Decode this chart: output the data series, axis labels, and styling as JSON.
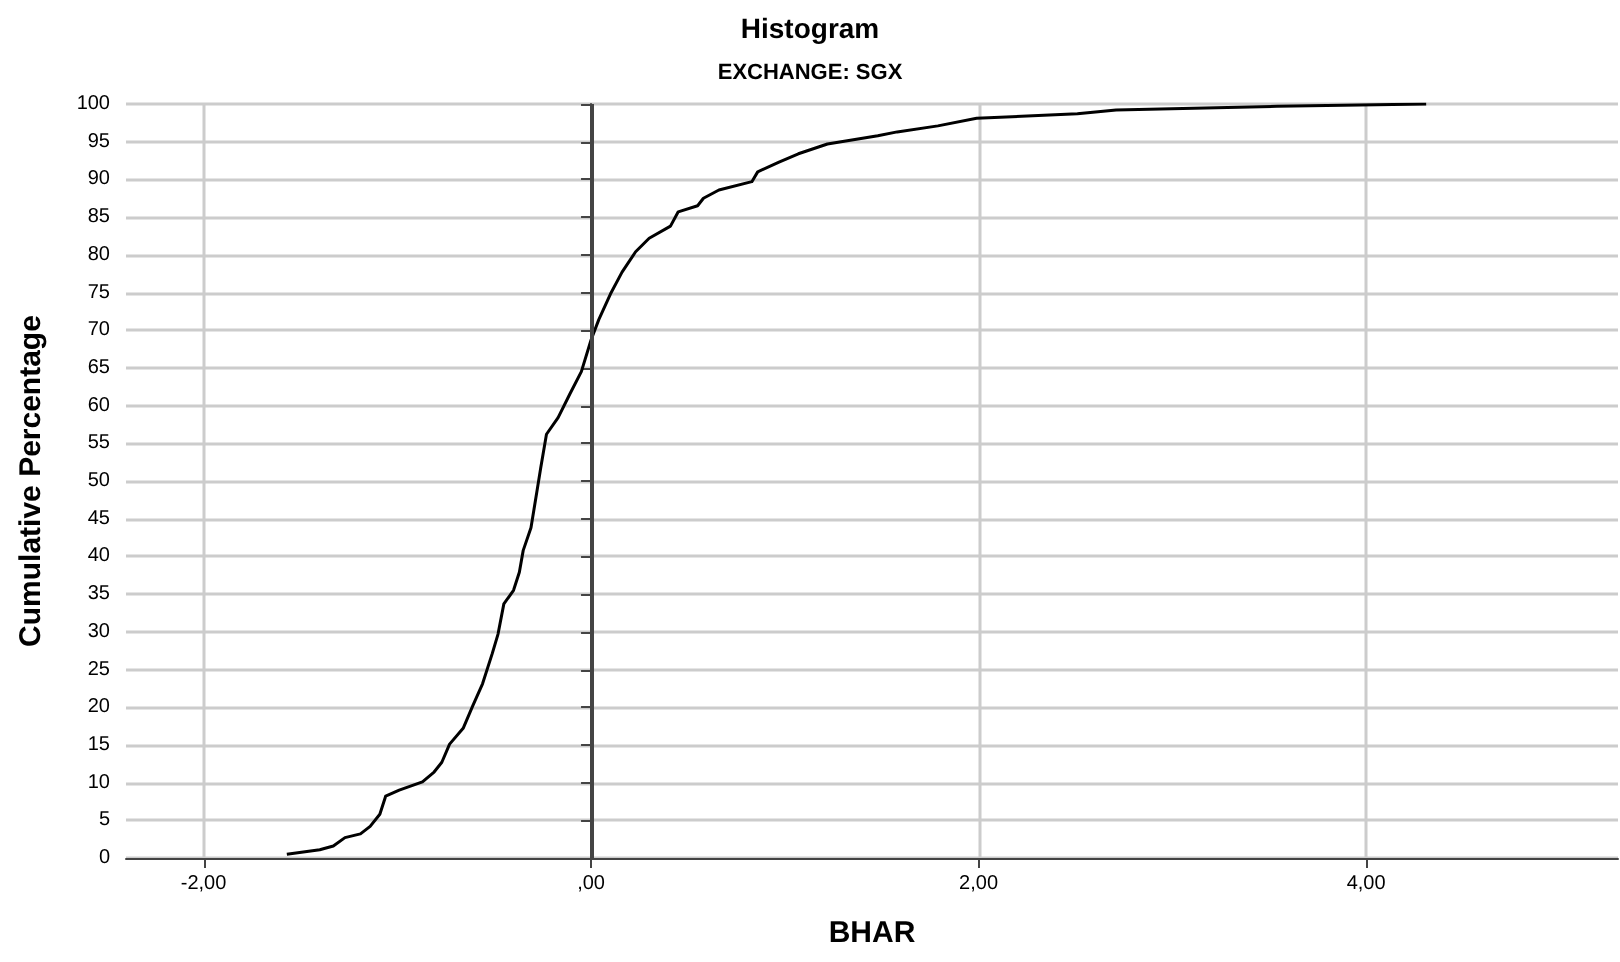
{
  "chart_data": {
    "type": "line",
    "title": "Histogram",
    "subtitle": "EXCHANGE: SGX",
    "xlabel": "BHAR",
    "ylabel": "Cumulative Percentage",
    "x": [
      -1.57,
      -1.4,
      -1.33,
      -1.27,
      -1.19,
      -1.14,
      -1.09,
      -1.06,
      -0.99,
      -0.87,
      -0.81,
      -0.77,
      -0.73,
      -0.66,
      -0.61,
      -0.56,
      -0.51,
      -0.48,
      -0.45,
      -0.4,
      -0.37,
      -0.35,
      -0.31,
      -0.28,
      -0.26,
      -0.23,
      -0.17,
      -0.11,
      -0.05,
      0,
      0.04,
      0.1,
      0.16,
      0.23,
      0.3,
      0.41,
      0.45,
      0.55,
      0.58,
      0.66,
      0.83,
      0.86,
      0.97,
      1.07,
      1.22,
      1.48,
      1.58,
      1.79,
      1.99,
      2.51,
      2.71,
      3.54,
      4.31
    ],
    "series": [
      {
        "color": "#000000",
        "values": [
          0.5,
          1.1,
          1.6,
          2.7,
          3.2,
          4.2,
          5.8,
          8.2,
          9,
          10.1,
          11.4,
          12.7,
          15.1,
          17.2,
          20.2,
          23.1,
          27.1,
          29.7,
          33.7,
          35.5,
          37.9,
          40.8,
          43.8,
          48.5,
          51.7,
          56.2,
          58.4,
          61.5,
          64.5,
          68.7,
          71.4,
          74.8,
          77.7,
          80.4,
          82.2,
          83.8,
          85.7,
          86.5,
          87.5,
          88.6,
          89.7,
          91,
          92.3,
          93.4,
          94.7,
          95.8,
          96.3,
          97.1,
          98.1,
          98.7,
          99.2,
          99.7,
          100
        ]
      }
    ],
    "xlim": [
      -2.4,
      5.3
    ],
    "xticks": [
      {
        "value": -2,
        "label": "-2,00"
      },
      {
        "value": 0,
        "label": ",00"
      },
      {
        "value": 2,
        "label": "2,00"
      },
      {
        "value": 4,
        "label": "4,00"
      }
    ],
    "ylim": [
      0,
      100
    ],
    "yticks": [
      0,
      5,
      10,
      15,
      20,
      25,
      30,
      35,
      40,
      45,
      50,
      55,
      60,
      65,
      70,
      75,
      80,
      85,
      90,
      95,
      100
    ],
    "grid": true,
    "marker": "none",
    "line_style": "solid",
    "ref_lines": [
      {
        "axis": "x",
        "value": 0,
        "color": "#444444",
        "line_style": "solid"
      }
    ]
  }
}
